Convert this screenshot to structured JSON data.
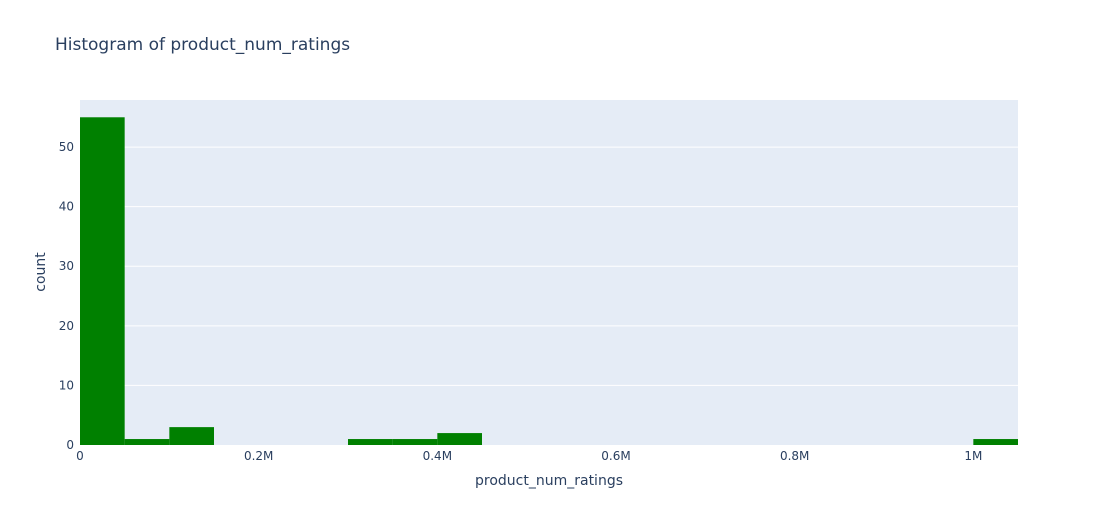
{
  "chart_data": {
    "type": "bar",
    "title": "Histogram of product_num_ratings",
    "xlabel": "product_num_ratings",
    "ylabel": "count",
    "bin_width": 50000,
    "x_range": [
      0,
      1050000
    ],
    "y_range": [
      0,
      57.9
    ],
    "x_ticks": [
      {
        "value": 0,
        "label": "0"
      },
      {
        "value": 200000,
        "label": "0.2M"
      },
      {
        "value": 400000,
        "label": "0.4M"
      },
      {
        "value": 600000,
        "label": "0.6M"
      },
      {
        "value": 800000,
        "label": "0.8M"
      },
      {
        "value": 1000000,
        "label": "1M"
      }
    ],
    "y_ticks": [
      {
        "value": 0,
        "label": "0"
      },
      {
        "value": 10,
        "label": "10"
      },
      {
        "value": 20,
        "label": "20"
      },
      {
        "value": 30,
        "label": "30"
      },
      {
        "value": 40,
        "label": "40"
      },
      {
        "value": 50,
        "label": "50"
      }
    ],
    "bins": [
      {
        "x0": 0,
        "x1": 50000,
        "count": 55
      },
      {
        "x0": 50000,
        "x1": 100000,
        "count": 1
      },
      {
        "x0": 100000,
        "x1": 150000,
        "count": 3
      },
      {
        "x0": 300000,
        "x1": 350000,
        "count": 1
      },
      {
        "x0": 350000,
        "x1": 400000,
        "count": 1
      },
      {
        "x0": 400000,
        "x1": 450000,
        "count": 2
      },
      {
        "x0": 1000000,
        "x1": 1050000,
        "count": 1
      }
    ],
    "bar_color": "#008000",
    "plot_background": "#e5ecf6",
    "grid_color": "#ffffff",
    "grid": true,
    "legend": "none"
  }
}
